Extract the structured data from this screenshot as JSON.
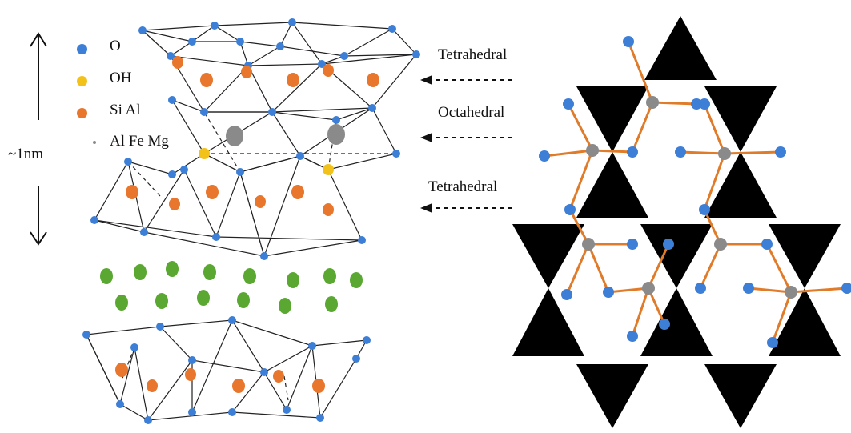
{
  "legend": [
    {
      "label": "O",
      "color": "#3d7fd6"
    },
    {
      "label": "OH",
      "color": "#f2c21b"
    },
    {
      "label": "Si Al",
      "color": "#e8762d"
    },
    {
      "label": "Al Fe Mg",
      "color": "#8a8a8a"
    }
  ],
  "scale_label": "~1nm",
  "layer_labels": {
    "top": "Tetrahedral",
    "middle": "Octahedral",
    "bottom": "Tetrahedral"
  },
  "colors": {
    "oxygen": "#3d7fd6",
    "hydroxyl": "#f2c21b",
    "si_al": "#e8762d",
    "octahedral_cation": "#8a8a8a",
    "interlayer_cation": "#5aa832",
    "bond": "#e07b2a",
    "tetrahedron_fill": "#000000"
  }
}
